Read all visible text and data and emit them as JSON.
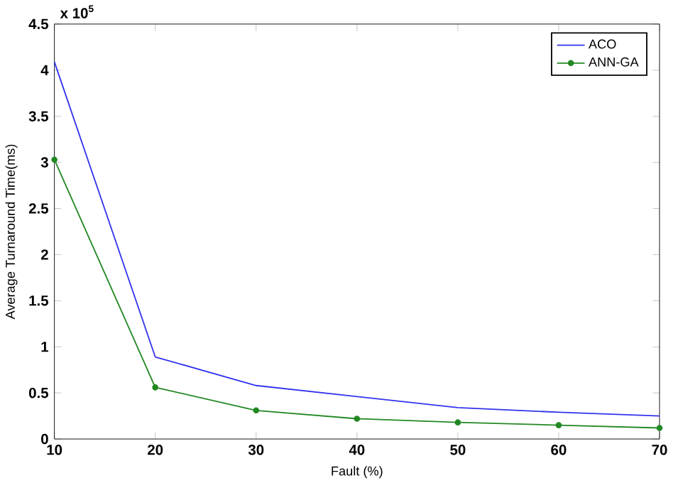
{
  "chart_data": {
    "type": "line",
    "xlabel": "Fault (%)",
    "ylabel": "Average Turnaround Time(ms)",
    "annotations": [
      "x 10$^{5}$"
    ],
    "x": [
      10,
      20,
      30,
      40,
      50,
      60,
      70
    ],
    "series": [
      {
        "name": "ACO",
        "color": "#3333ee",
        "marker": "none",
        "values": [
          4.09,
          0.89,
          0.58,
          0.46,
          0.34,
          0.29,
          0.25
        ]
      },
      {
        "name": "ANN-GA",
        "color": "#228822",
        "marker": "circle",
        "values": [
          3.03,
          0.56,
          0.31,
          0.22,
          0.18,
          0.15,
          0.12
        ]
      }
    ],
    "xlim": [
      10,
      70
    ],
    "xticks": [
      10,
      20,
      30,
      40,
      50,
      60,
      70
    ],
    "ylim": [
      0,
      4.5
    ],
    "yticks": [
      0,
      0.5,
      1,
      1.5,
      2,
      2.5,
      3,
      3.5,
      4,
      4.5
    ],
    "legend": "top right",
    "grid": false,
    "line_style": "solid"
  }
}
